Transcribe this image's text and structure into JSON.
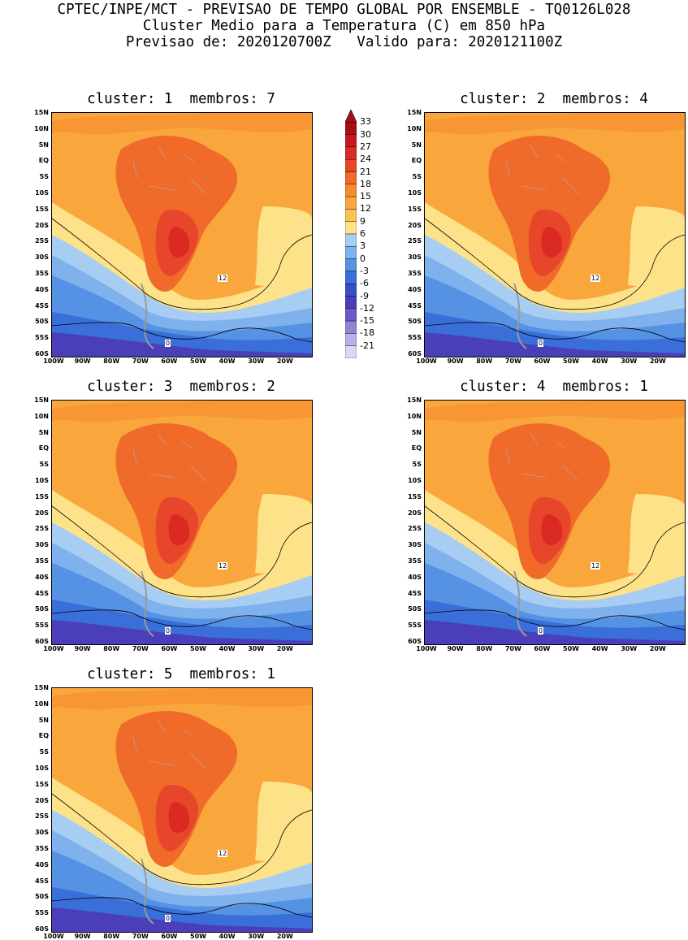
{
  "header": {
    "line1": "CPTEC/INPE/MCT - PREVISAO DE TEMPO GLOBAL POR ENSEMBLE - TQ0126L028",
    "line2": "Cluster Medio para a Temperatura (C) em 850 hPa",
    "line3": "Previsao de: 2020120700Z   Valido para: 2020121100Z"
  },
  "panels": [
    {
      "title": "cluster: 1  membros: 7"
    },
    {
      "title": "cluster: 2  membros: 4"
    },
    {
      "title": "cluster: 3  membros: 2"
    },
    {
      "title": "cluster: 4  membros: 1"
    },
    {
      "title": "cluster: 5  membros: 1"
    }
  ],
  "lat_ticks": [
    "15N",
    "10N",
    "5N",
    "EQ",
    "5S",
    "10S",
    "15S",
    "20S",
    "25S",
    "30S",
    "35S",
    "40S",
    "45S",
    "50S",
    "55S",
    "60S"
  ],
  "lon_ticks": [
    "100W",
    "90W",
    "80W",
    "70W",
    "60W",
    "50W",
    "40W",
    "30W",
    "20W"
  ],
  "contour_labels": {
    "warm": "12",
    "cold": "0"
  },
  "colorbar": {
    "labels": [
      "33",
      "30",
      "27",
      "24",
      "21",
      "18",
      "15",
      "12",
      "9",
      "6",
      "3",
      "0",
      "-3",
      "-6",
      "-9",
      "-12",
      "-15",
      "-18",
      "-21"
    ],
    "colors": [
      "#a50f15",
      "#c81a1c",
      "#d92a23",
      "#e8462b",
      "#f06a2a",
      "#f78a2e",
      "#f9a73c",
      "#fbc251",
      "#fde28a",
      "#a8cdf2",
      "#7fb1ec",
      "#5592e3",
      "#3a6fd9",
      "#3450c9",
      "#4a3fb8",
      "#6a5bc9",
      "#8f85d8",
      "#b8b0e6",
      "#dcd6f3"
    ]
  }
}
